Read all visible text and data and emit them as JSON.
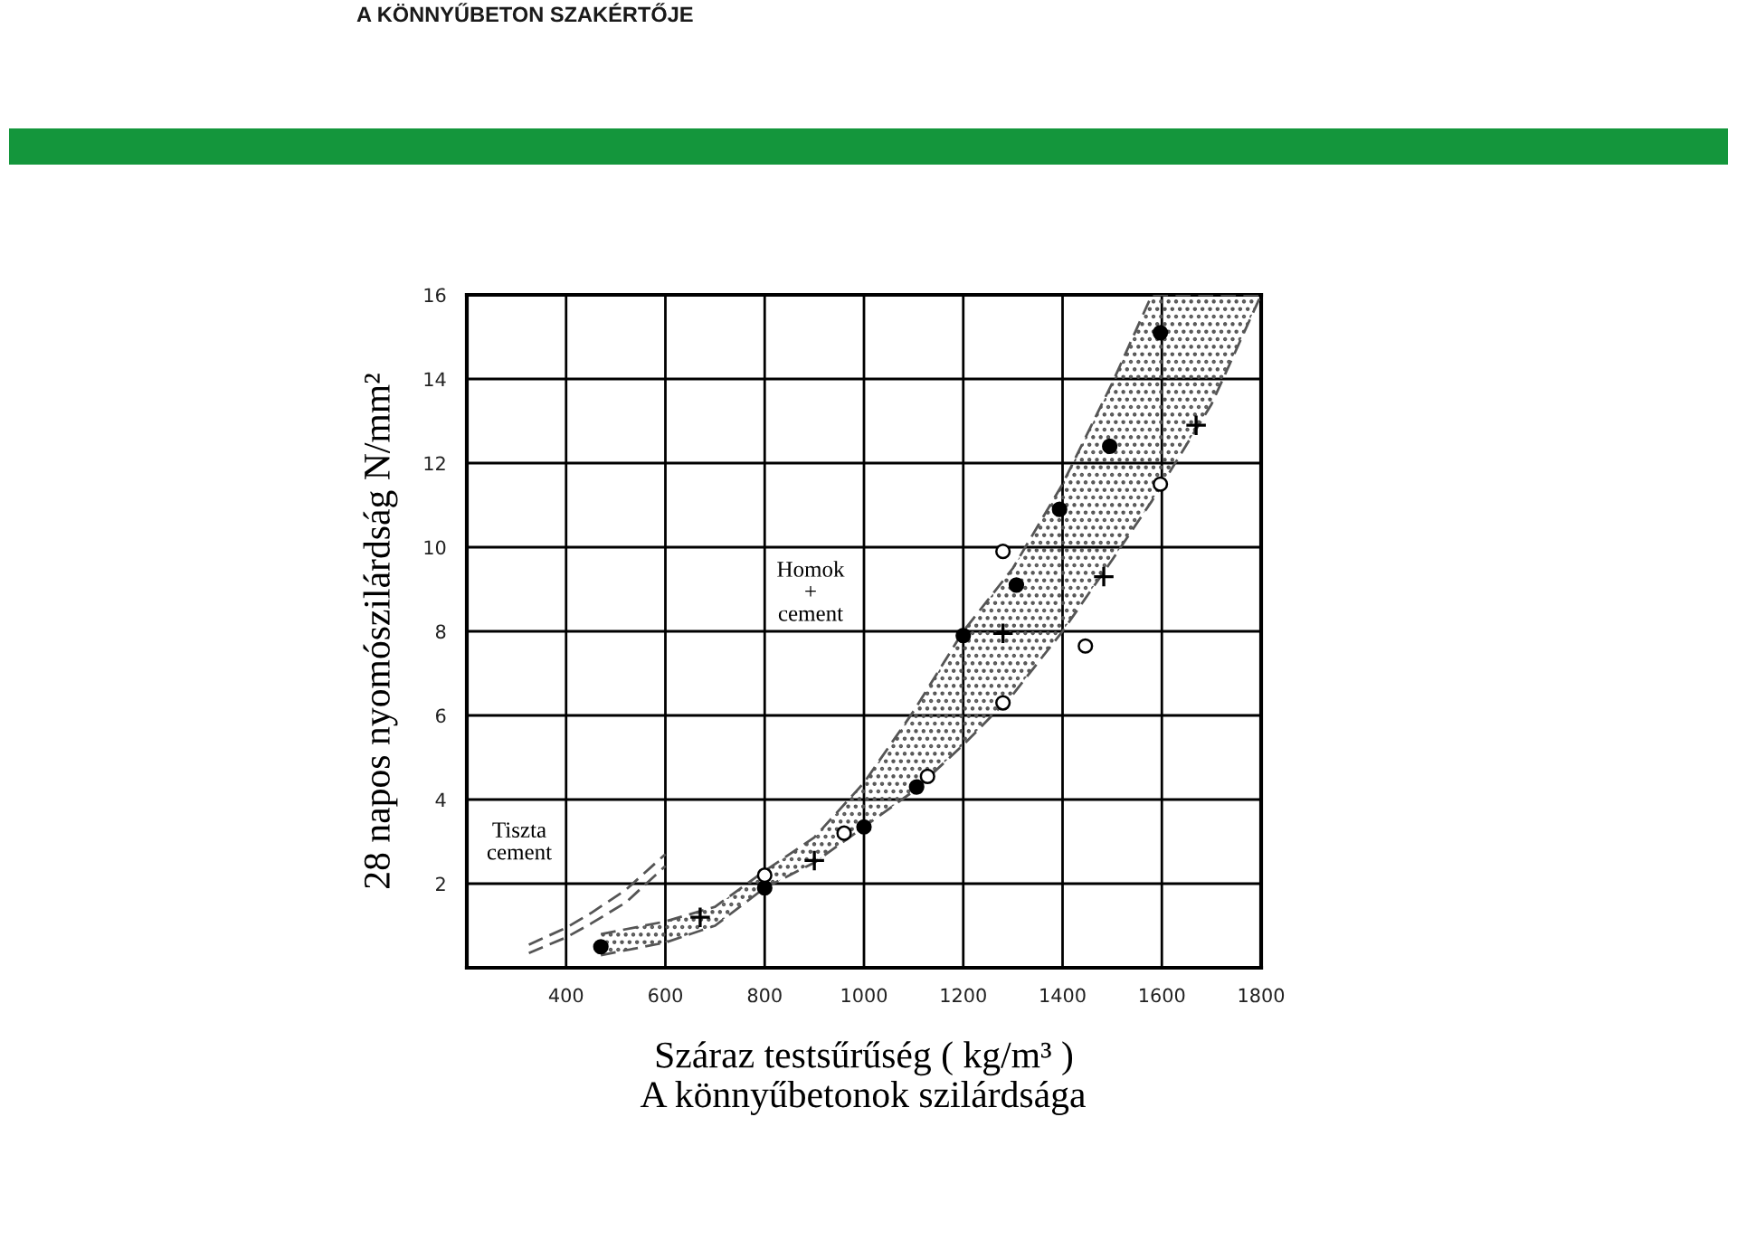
{
  "chart_data": {
    "type": "scatter",
    "title": "A könnyűbetonok szilárdsága",
    "xlabel": "Száraz testsűrűség ( kg/m³ )",
    "ylabel": "28 napos nyomószilárdság N/mm²",
    "xlim": [
      200,
      1800
    ],
    "ylim": [
      0,
      16
    ],
    "xticks": [
      400,
      600,
      800,
      1000,
      1200,
      1400,
      1600,
      1800
    ],
    "yticks": [
      2,
      4,
      6,
      8,
      10,
      12,
      14,
      16
    ],
    "grid": true,
    "series": [
      {
        "type": "line",
        "color": "#555555",
        "line_style": "dashed",
        "x": [
          325,
          400,
          450,
          520,
          600
        ],
        "values": [
          0.55,
          0.95,
          1.3,
          1.85,
          2.7
        ]
      },
      {
        "type": "line",
        "color": "#555555",
        "line_style": "dashed",
        "x": [
          325,
          400,
          450,
          520,
          600
        ],
        "values": [
          0.35,
          0.72,
          1.05,
          1.55,
          2.42
        ]
      },
      {
        "type": "line",
        "color": "#555555",
        "line_style": "dashed",
        "x": [
          470,
          600,
          700,
          800,
          900,
          1000,
          1100,
          1200,
          1300,
          1400,
          1500,
          1580,
          1700,
          1800
        ],
        "values": [
          0.8,
          1.1,
          1.45,
          2.3,
          3.1,
          4.4,
          6.1,
          8.0,
          9.5,
          11.5,
          13.9,
          16,
          16,
          16
        ],
        "lower": [
          0.3,
          0.6,
          1.0,
          1.9,
          2.5,
          3.35,
          4.2,
          5.3,
          6.5,
          8.0,
          9.7,
          11.1,
          13.4,
          16
        ],
        "upper": [
          0.8,
          1.1,
          1.45,
          2.3,
          3.1,
          4.4,
          6.1,
          8.0,
          9.5,
          11.5,
          13.9,
          16,
          16,
          16
        ]
      },
      {
        "type": "line",
        "color": "#555555",
        "line_style": "dashed",
        "x": [
          470,
          600,
          700,
          800,
          900,
          1000,
          1100,
          1200,
          1300,
          1400,
          1500,
          1580,
          1700,
          1800
        ],
        "values": [
          0.3,
          0.6,
          1.0,
          1.9,
          2.5,
          3.35,
          4.2,
          5.3,
          6.5,
          8.0,
          9.7,
          11.1,
          13.4,
          16
        ]
      },
      {
        "color": "#000000",
        "marker": "circle",
        "x": [
          470,
          800,
          1000,
          1106,
          1200,
          1307,
          1394,
          1495,
          1597
        ],
        "values": [
          0.5,
          1.9,
          3.35,
          4.3,
          7.9,
          9.1,
          10.9,
          12.4,
          15.1
        ]
      },
      {
        "color": "#000000",
        "marker": "circle",
        "x": [
          800,
          960,
          1128,
          1280,
          1280,
          1446,
          1597
        ],
        "values": [
          2.2,
          3.2,
          4.55,
          6.3,
          9.9,
          7.65,
          11.5
        ]
      },
      {
        "color": "#000000",
        "marker": "cross",
        "x": [
          670,
          900,
          1280,
          1483,
          1669
        ],
        "values": [
          1.2,
          2.55,
          7.95,
          9.3,
          12.9
        ]
      }
    ],
    "annotations": [
      "Homok\n+\ncement",
      "Tiszta\ncement",
      "A KÖNNYŰBETON SZAKÉRTŐJE"
    ]
  }
}
